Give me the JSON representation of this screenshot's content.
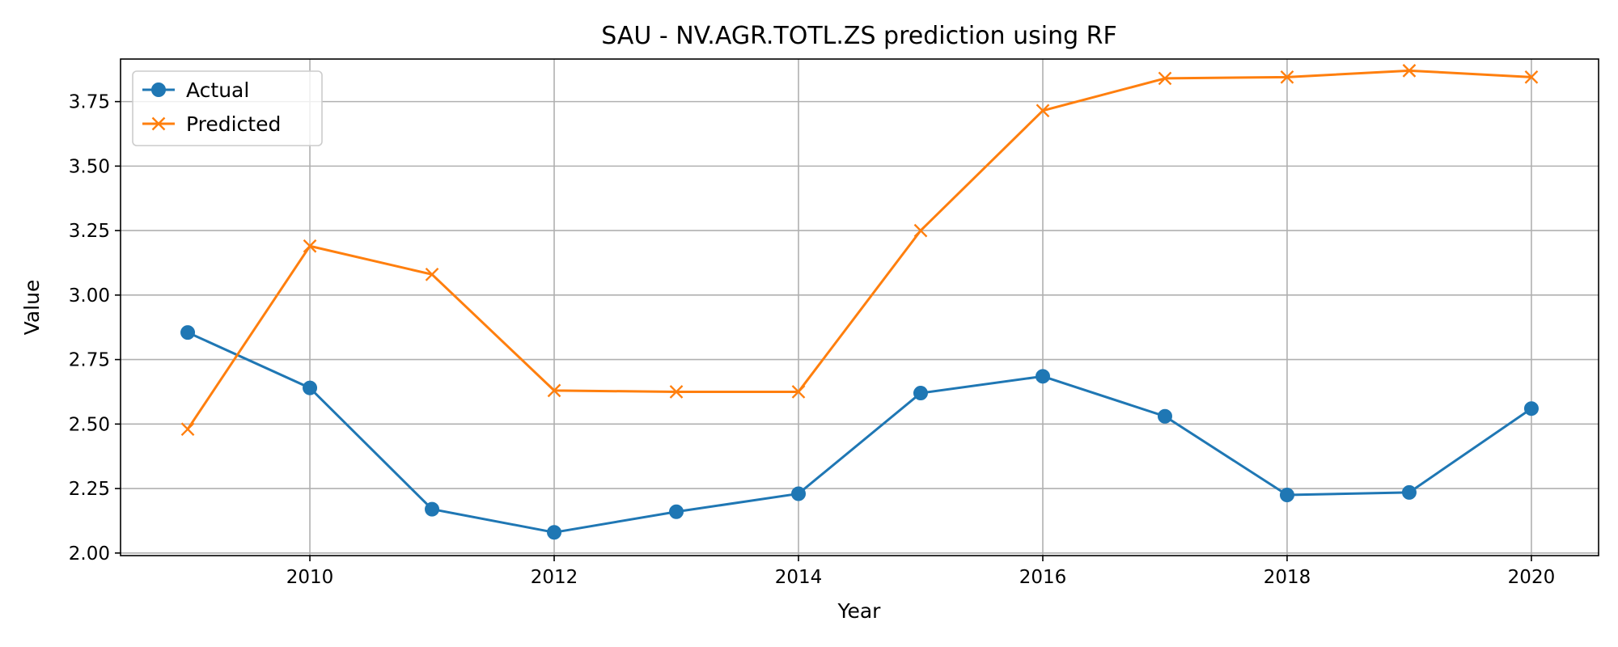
{
  "chart_data": {
    "type": "line",
    "title": "SAU - NV.AGR.TOTL.ZS prediction using RF",
    "xlabel": "Year",
    "ylabel": "Value",
    "x": [
      2009,
      2010,
      2011,
      2012,
      2013,
      2014,
      2015,
      2016,
      2017,
      2018,
      2019,
      2020
    ],
    "xlim": [
      2008.45,
      2020.55
    ],
    "ylim": [
      1.99,
      3.915
    ],
    "x_ticks": [
      2010,
      2012,
      2014,
      2016,
      2018,
      2020
    ],
    "y_ticks": [
      2.0,
      2.25,
      2.5,
      2.75,
      3.0,
      3.25,
      3.5,
      3.75
    ],
    "x_tick_labels": [
      "2010",
      "2012",
      "2014",
      "2016",
      "2018",
      "2020"
    ],
    "y_tick_labels": [
      "2.00",
      "2.25",
      "2.50",
      "2.75",
      "3.00",
      "3.25",
      "3.50",
      "3.75"
    ],
    "grid": true,
    "legend_position": "top-left",
    "series": [
      {
        "name": "Actual",
        "color": "#1f77b4",
        "marker": "circle",
        "values": [
          2.855,
          2.64,
          2.17,
          2.08,
          2.16,
          2.23,
          2.62,
          2.685,
          2.53,
          2.225,
          2.235,
          2.56
        ]
      },
      {
        "name": "Predicted",
        "color": "#ff7f0e",
        "marker": "x",
        "values": [
          2.48,
          3.19,
          3.08,
          2.63,
          2.625,
          2.625,
          3.25,
          3.715,
          3.84,
          3.845,
          3.87,
          3.845
        ]
      }
    ]
  }
}
